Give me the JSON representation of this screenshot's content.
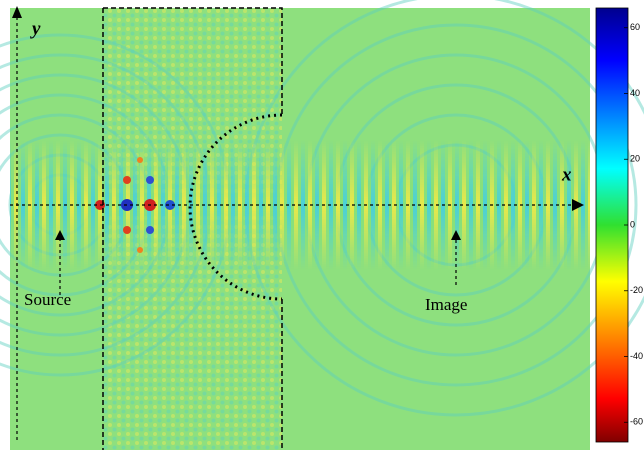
{
  "figure": {
    "labels": {
      "y_axis": "y",
      "x_axis": "x",
      "source": "Source",
      "image": "Image"
    },
    "colorbar": {
      "lim": [
        -66,
        66
      ],
      "ticks": [
        60,
        40,
        20,
        0,
        -20,
        -40,
        -60
      ]
    }
  }
}
